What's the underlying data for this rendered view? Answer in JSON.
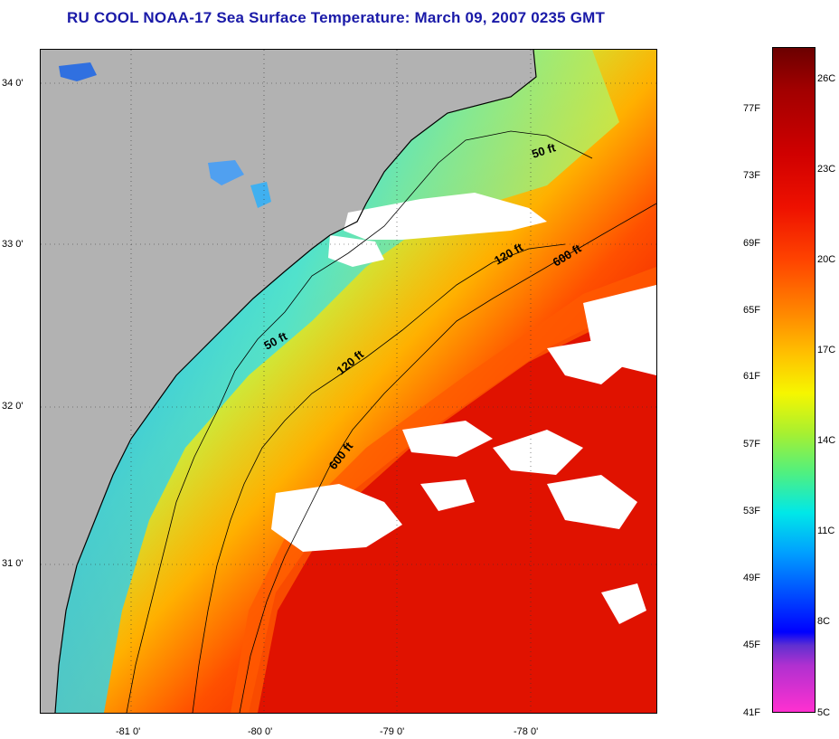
{
  "title": "RU COOL  NOAA-17  Sea Surface Temperature:  March 09, 2007 0235 GMT",
  "map": {
    "lat_labels": [
      "34 0'",
      "33 0'",
      "32 0'",
      "31 0'"
    ],
    "lon_labels": [
      "-81 0'",
      "-80 0'",
      "-79 0'",
      "-78 0'"
    ],
    "isobath_labels": [
      "50 ft",
      "120 ft",
      "600 ft",
      "50 ft",
      "120 ft",
      "600 ft"
    ],
    "colors": {
      "land": "#b2b2b2",
      "cloud": "#ffffff",
      "coast": "#000000"
    }
  },
  "colorbar": {
    "fahrenheit": [
      "77F",
      "73F",
      "69F",
      "65F",
      "61F",
      "57F",
      "53F",
      "49F",
      "45F",
      "41F"
    ],
    "celsius": [
      "26C",
      "23C",
      "20C",
      "17C",
      "14C",
      "11C",
      "8C",
      "5C"
    ]
  }
}
